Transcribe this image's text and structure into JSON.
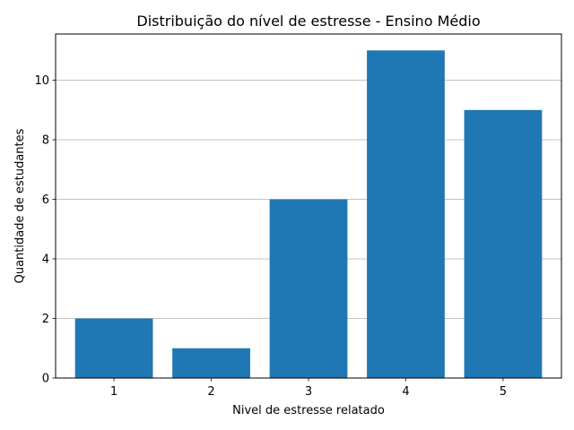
{
  "chart_data": {
    "type": "bar",
    "title": "Distribuição do nível de estresse - Ensino Médio",
    "xlabel": "Nivel de estresse relatado",
    "ylabel": "Quantidade de estudantes",
    "categories": [
      "1",
      "2",
      "3",
      "4",
      "5"
    ],
    "values": [
      2,
      1,
      6,
      11,
      9
    ],
    "ylim": [
      0,
      11.55
    ],
    "yticks": [
      "0",
      "2",
      "4",
      "6",
      "8",
      "10"
    ],
    "grid": "horizontal",
    "bar_color": "#1f77b4"
  }
}
